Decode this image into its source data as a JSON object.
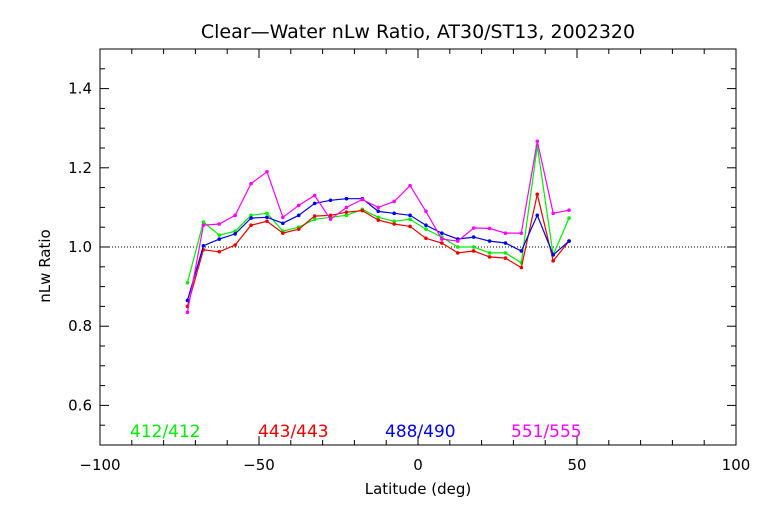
{
  "chart_data": {
    "type": "line",
    "title": "Clear—Water nLw Ratio, AT30/ST13, 2002320",
    "xlabel": "Latitude (deg)",
    "ylabel": "nLw Ratio",
    "xlim": [
      -100,
      100
    ],
    "ylim": [
      0.5,
      1.5
    ],
    "x_ticks": [
      -100,
      -50,
      0,
      50,
      100
    ],
    "x_tick_labels": [
      "−100",
      "−50",
      "0",
      "50",
      "100"
    ],
    "y_ticks": [
      0.6,
      0.8,
      1.0,
      1.2,
      1.4
    ],
    "y_tick_labels": [
      "0.6",
      "0.8",
      "1.0",
      "1.2",
      "1.4"
    ],
    "reference_line": {
      "y": 1.0,
      "style": "dotted"
    },
    "grid": false,
    "legend_placement": "bottom, inside plot",
    "x": [
      -72.5,
      -67.5,
      -62.5,
      -57.5,
      -52.5,
      -47.5,
      -42.5,
      -37.5,
      -32.5,
      -27.5,
      -22.5,
      -17.5,
      -12.5,
      -7.5,
      -2.5,
      2.5,
      7.5,
      12.5,
      17.5,
      22.5,
      27.5,
      32.5,
      37.5,
      42.5,
      47.5
    ],
    "series": [
      {
        "name": "412/412",
        "color": "#00ee00",
        "values": [
          0.91,
          1.063,
          1.03,
          1.04,
          1.08,
          1.085,
          1.04,
          1.05,
          1.07,
          1.075,
          1.08,
          1.095,
          1.075,
          1.065,
          1.07,
          1.045,
          1.025,
          1.0,
          1.0,
          0.985,
          0.985,
          0.96,
          1.255,
          0.98,
          1.073
        ]
      },
      {
        "name": "443/443",
        "color": "#ee0000",
        "values": [
          0.85,
          0.993,
          0.988,
          1.005,
          1.055,
          1.065,
          1.035,
          1.045,
          1.078,
          1.08,
          1.088,
          1.092,
          1.068,
          1.058,
          1.052,
          1.022,
          1.01,
          0.985,
          0.99,
          0.975,
          0.972,
          0.948,
          1.133,
          0.965,
          1.015
        ]
      },
      {
        "name": "488/490",
        "color": "#0000ee",
        "values": [
          0.865,
          1.003,
          1.02,
          1.033,
          1.073,
          1.075,
          1.06,
          1.08,
          1.11,
          1.118,
          1.122,
          1.122,
          1.09,
          1.085,
          1.08,
          1.055,
          1.035,
          1.02,
          1.025,
          1.015,
          1.01,
          0.99,
          1.08,
          0.98,
          1.015
        ]
      },
      {
        "name": "551/555",
        "color": "#ff00ff",
        "values": [
          0.835,
          1.055,
          1.058,
          1.08,
          1.16,
          1.19,
          1.075,
          1.105,
          1.13,
          1.07,
          1.1,
          1.12,
          1.1,
          1.115,
          1.155,
          1.09,
          1.02,
          1.015,
          1.048,
          1.047,
          1.035,
          1.035,
          1.267,
          1.085,
          1.093
        ]
      }
    ]
  }
}
